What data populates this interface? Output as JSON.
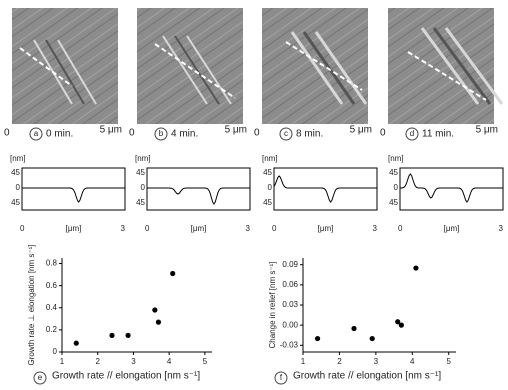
{
  "panels": [
    {
      "letter": "a",
      "time": "0 min.",
      "scale_start": "0",
      "scale_end": "5 μm"
    },
    {
      "letter": "b",
      "time": "4 min.",
      "scale_start": "0",
      "scale_end": "5 μm"
    },
    {
      "letter": "c",
      "time": "8 min.",
      "scale_start": "0",
      "scale_end": "5 μm"
    },
    {
      "letter": "d",
      "time": "11 min.",
      "scale_start": "0",
      "scale_end": "5 μm"
    }
  ],
  "profiles": [
    {
      "y_unit": "[nm]",
      "y_top": "45",
      "y_mid": "0",
      "y_bottom": "45",
      "x_unit": "[μm]",
      "x_start": "0",
      "x_end": "3"
    },
    {
      "y_unit": "[nm]",
      "y_top": "45",
      "y_mid": "0",
      "y_bottom": "45",
      "x_unit": "[μm]",
      "x_start": "0",
      "x_end": "3"
    },
    {
      "y_unit": "[nm]",
      "y_top": "45",
      "y_mid": "0",
      "y_bottom": "45",
      "x_unit": "[μm]",
      "x_start": "0",
      "x_end": "3"
    },
    {
      "y_unit": "[nm]",
      "y_top": "45",
      "y_mid": "0",
      "y_bottom": "45",
      "x_unit": "[μm]",
      "x_start": "0",
      "x_end": "3"
    }
  ],
  "chart_data": [
    {
      "type": "scatter",
      "panel_label": "e",
      "x_label": "Growth rate // elongation [nm s⁻¹]",
      "y_label": "Growth rate ⊥ elongation [nm s⁻¹]",
      "x": [
        1.4,
        2.4,
        2.85,
        3.6,
        3.7,
        4.1
      ],
      "values": [
        0.08,
        0.15,
        0.15,
        0.38,
        0.27,
        0.71
      ],
      "color": "#000000",
      "xlim": [
        1,
        5.2
      ],
      "ylim": [
        0,
        0.85
      ],
      "xticks": [
        1,
        2,
        3,
        4,
        5
      ],
      "yticks": [
        0,
        0.2,
        0.4,
        0.6,
        0.8
      ]
    },
    {
      "type": "scatter",
      "panel_label": "f",
      "x_label": "Growth rate // elongation [nm s⁻¹]",
      "y_label": "Change in relief [nm s⁻¹]",
      "x": [
        1.4,
        2.4,
        2.9,
        3.6,
        3.7,
        4.1
      ],
      "values": [
        -0.02,
        -0.005,
        -0.02,
        0.005,
        0,
        0.085
      ],
      "color": "#000000",
      "xlim": [
        1,
        5.2
      ],
      "ylim": [
        -0.04,
        0.1
      ],
      "xticks": [
        1,
        2,
        3,
        4,
        5
      ],
      "yticks": [
        -0.03,
        {
          "value": 0,
          "label": "0.00"
        },
        0.03,
        0.06,
        0.09
      ]
    }
  ]
}
